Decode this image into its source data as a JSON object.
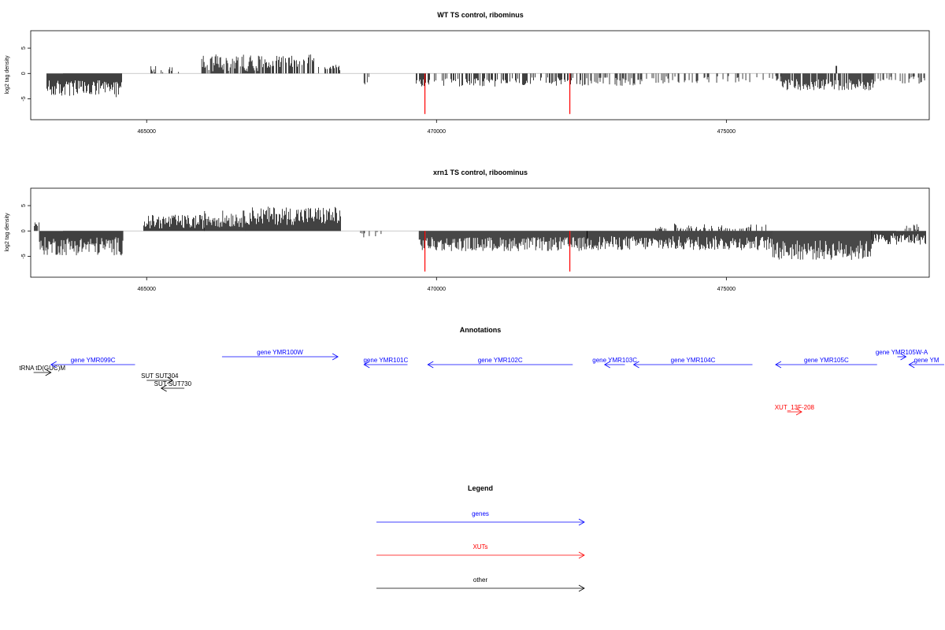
{
  "colors": {
    "genes": "#0000ff",
    "xuts": "#ff0000",
    "other": "#000000",
    "baseline": "#bbbbbb",
    "outlier": "#ff0000"
  },
  "chart_data": [
    {
      "type": "bar",
      "title": "WT TS control, ribominus",
      "ylabel": "log2 tag density",
      "xlim": [
        463000,
        478500
      ],
      "ylim": [
        -8.5,
        7.5
      ],
      "x_ticks": [
        465000,
        470000,
        475000
      ],
      "x_tick_labels": [
        "465000",
        "470000",
        "475000"
      ],
      "y_ticks": [
        -5,
        0,
        5
      ],
      "y_tick_labels": [
        "-5",
        "0",
        "5"
      ],
      "outliers": [
        {
          "x": 469800,
          "y": -8.0
        },
        {
          "x": 472300,
          "y": -8.0
        }
      ],
      "segments": [
        {
          "x0": 463280,
          "x1": 464580,
          "level": -3.0,
          "spread": 1.2,
          "density": 1.6
        },
        {
          "x0": 465020,
          "x1": 465620,
          "level": 1.0,
          "spread": 0.6,
          "density": 0.25
        },
        {
          "x0": 465950,
          "x1": 467000,
          "level": 2.1,
          "spread": 1.2,
          "density": 0.75
        },
        {
          "x0": 467000,
          "x1": 467900,
          "level": 2.4,
          "spread": 1.0,
          "density": 0.7
        },
        {
          "x0": 467950,
          "x1": 468350,
          "level": 1.2,
          "spread": 0.4,
          "density": 0.5
        },
        {
          "x0": 468750,
          "x1": 468950,
          "level": -1.5,
          "spread": 0.6,
          "density": 0.25
        },
        {
          "x0": 469650,
          "x1": 471050,
          "level": -1.8,
          "spread": 0.6,
          "density": 0.55
        },
        {
          "x0": 471050,
          "x1": 472550,
          "level": -1.6,
          "spread": 0.6,
          "density": 0.5
        },
        {
          "x0": 472550,
          "x1": 473950,
          "level": -1.6,
          "spread": 0.6,
          "density": 0.4
        },
        {
          "x0": 473950,
          "x1": 475950,
          "level": -1.2,
          "spread": 0.5,
          "density": 0.3
        },
        {
          "x0": 475950,
          "x1": 477550,
          "level": -2.2,
          "spread": 0.8,
          "density": 0.9
        },
        {
          "x0": 476850,
          "x1": 476910,
          "level": 1.5,
          "spread": 0.0,
          "density": 0.5
        },
        {
          "x0": 477550,
          "x1": 478450,
          "level": -1.3,
          "spread": 0.5,
          "density": 0.35
        }
      ]
    },
    {
      "type": "bar",
      "title": "xrn1 TS control, riboominus",
      "ylabel": "log2 tag density",
      "xlim": [
        463000,
        478500
      ],
      "ylim": [
        -8.5,
        7.5
      ],
      "x_ticks": [
        465000,
        470000,
        475000
      ],
      "x_tick_labels": [
        "465000",
        "470000",
        "475000"
      ],
      "y_ticks": [
        -5,
        0,
        5
      ],
      "y_tick_labels": [
        "-5",
        "0",
        "5"
      ],
      "outliers": [
        {
          "x": 469800,
          "y": -8.0
        },
        {
          "x": 472300,
          "y": -8.0
        }
      ],
      "segments": [
        {
          "x0": 463050,
          "x1": 463150,
          "level": 1.2,
          "spread": 0.4,
          "density": 0.6
        },
        {
          "x0": 463150,
          "x1": 464600,
          "level": -3.0,
          "spread": 1.3,
          "density": 2.0
        },
        {
          "x0": 464950,
          "x1": 466000,
          "level": 1.8,
          "spread": 1.0,
          "density": 1.0
        },
        {
          "x0": 466000,
          "x1": 466700,
          "level": 2.4,
          "spread": 1.2,
          "density": 1.6
        },
        {
          "x0": 466700,
          "x1": 468350,
          "level": 3.0,
          "spread": 1.3,
          "density": 2.0
        },
        {
          "x0": 468650,
          "x1": 469050,
          "level": -0.8,
          "spread": 0.8,
          "density": 0.3
        },
        {
          "x0": 469700,
          "x1": 472600,
          "level": -2.6,
          "spread": 1.0,
          "density": 1.8
        },
        {
          "x0": 472600,
          "x1": 475800,
          "level": -2.4,
          "spread": 1.0,
          "density": 1.6
        },
        {
          "x0": 473700,
          "x1": 475700,
          "level": 0.8,
          "spread": 0.5,
          "density": 0.35
        },
        {
          "x0": 475800,
          "x1": 477500,
          "level": -3.8,
          "spread": 1.4,
          "density": 2.2
        },
        {
          "x0": 477500,
          "x1": 478450,
          "level": -1.6,
          "spread": 0.8,
          "density": 1.0
        },
        {
          "x0": 478000,
          "x1": 478450,
          "level": 0.8,
          "spread": 0.5,
          "density": 0.4
        }
      ]
    }
  ],
  "annotations": {
    "title": "Annotations",
    "features": [
      {
        "label": "tRNA tD(GUC)M",
        "start": 463050,
        "end": 463350,
        "strand": "+",
        "kind": "other",
        "row": 1
      },
      {
        "label": "gene YMR099C",
        "start": 463350,
        "end": 464800,
        "strand": "-",
        "kind": "genes",
        "row": 0
      },
      {
        "label": "SUT SUT304",
        "start": 465000,
        "end": 465450,
        "strand": "+",
        "kind": "other",
        "row": 2
      },
      {
        "label": "SUT SUT730",
        "start": 465250,
        "end": 465650,
        "strand": "-",
        "kind": "other",
        "row": 3
      },
      {
        "label": "gene YMR100W",
        "start": 466300,
        "end": 468300,
        "strand": "+",
        "kind": "genes",
        "row": -1
      },
      {
        "label": "gene YMR101C",
        "start": 468750,
        "end": 469500,
        "strand": "-",
        "kind": "genes",
        "row": 0
      },
      {
        "label": "gene YMR102C",
        "start": 469850,
        "end": 472350,
        "strand": "-",
        "kind": "genes",
        "row": 0
      },
      {
        "label": "gene YMR103C",
        "start": 472900,
        "end": 473250,
        "strand": "-",
        "kind": "genes",
        "row": 0
      },
      {
        "label": "gene YMR104C",
        "start": 473400,
        "end": 475450,
        "strand": "-",
        "kind": "genes",
        "row": 0
      },
      {
        "label": "gene YMR105C",
        "start": 475850,
        "end": 477600,
        "strand": "-",
        "kind": "genes",
        "row": 0
      },
      {
        "label": "gene YMR105W-A",
        "start": 477950,
        "end": 478100,
        "strand": "+",
        "kind": "genes",
        "row": -1
      },
      {
        "label": "gene YM",
        "start": 478150,
        "end": 478950,
        "strand": "-",
        "kind": "genes",
        "row": 0
      },
      {
        "label": "XUT_13F-208",
        "start": 476050,
        "end": 476300,
        "strand": "+",
        "kind": "xuts",
        "row": 6
      }
    ]
  },
  "legend": {
    "title": "Legend",
    "items": [
      {
        "label": "genes",
        "kind": "genes"
      },
      {
        "label": "XUTs",
        "kind": "xuts"
      },
      {
        "label": "other",
        "kind": "other"
      }
    ]
  }
}
